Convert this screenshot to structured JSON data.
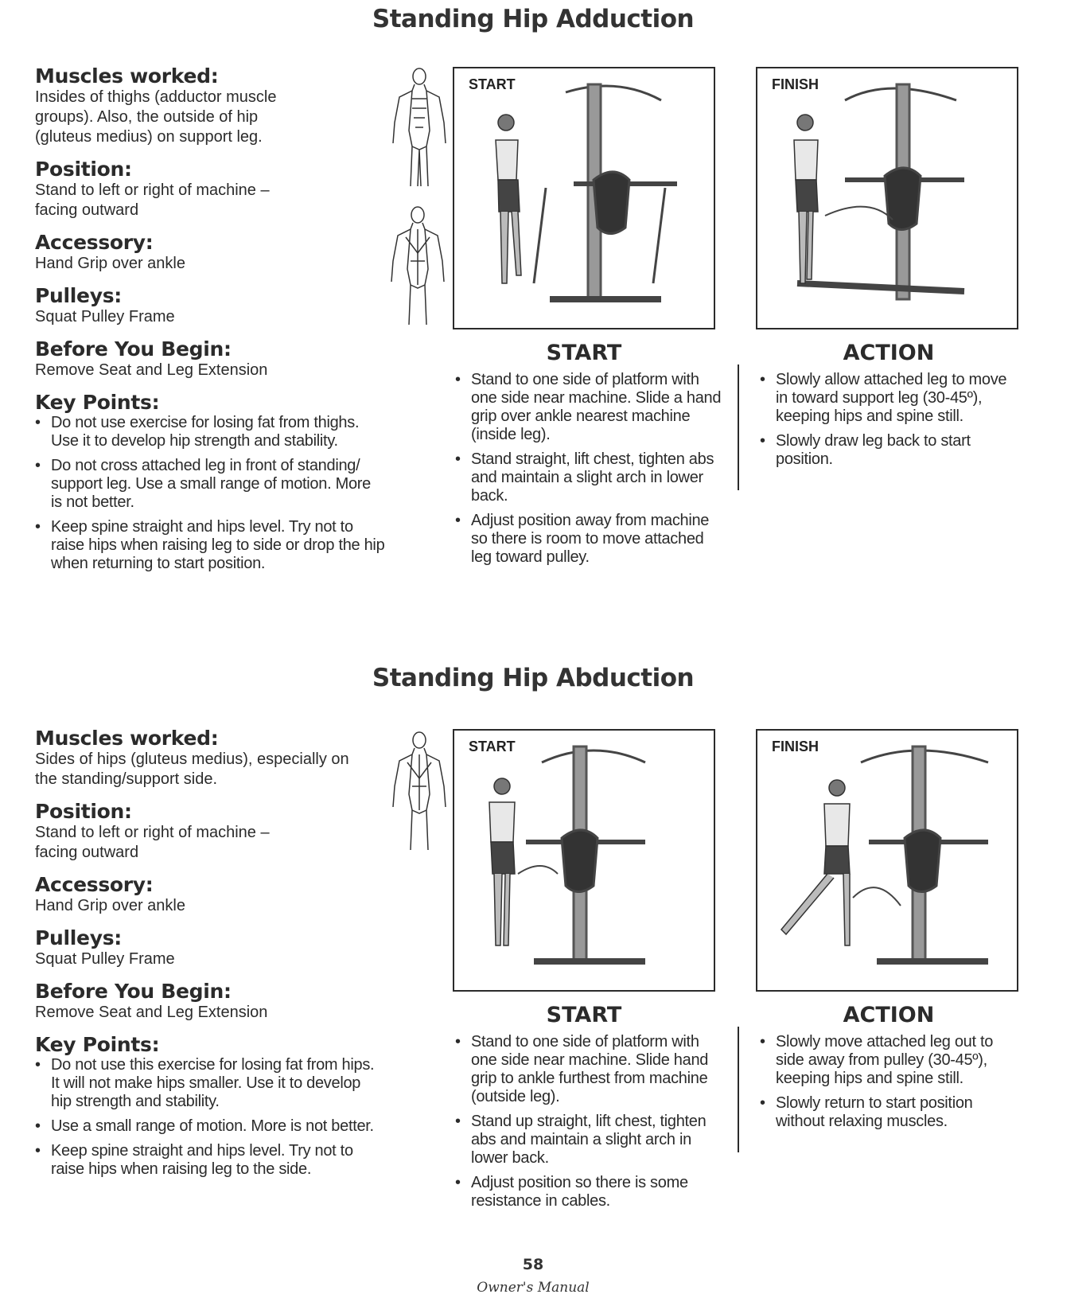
{
  "sections": [
    {
      "title": "Standing Hip Adduction",
      "muscles_label": "Muscles worked:",
      "muscles_text": "Insides of thighs (adductor muscle\ngroups). Also, the outside of hip\n(gluteus medius) on support leg.",
      "position_label": "Position:",
      "position_text": "Stand to left or right of machine –\nfacing outward",
      "accessory_label": "Accessory:",
      "accessory_text": "Hand Grip over ankle",
      "pulleys_label": "Pulleys:",
      "pulleys_text": "Squat Pulley Frame",
      "before_label": "Before You Begin:",
      "before_text": "Remove Seat and Leg Extension",
      "key_label": "Key Points:",
      "key_points": [
        "Do not use exercise for losing fat from thighs. Use it to develop hip strength and stability.",
        "Do not cross attached leg in front of standing/ support leg. Use a small range of motion. More is not better.",
        "Keep spine straight and hips level. Try not to raise hips when raising leg to side or drop the hip when returning to start position."
      ],
      "photo_start_tag": "START",
      "photo_finish_tag": "FINISH",
      "start_heading": "START",
      "start_steps": [
        "Stand to one side of platform with one side near machine. Slide a hand grip over ankle nearest machine (inside leg).",
        "Stand straight, lift chest, tighten abs and maintain a slight arch in lower back.",
        "Adjust position away from machine so there is room to move attached leg toward pulley."
      ],
      "action_heading": "ACTION",
      "action_steps": [
        "Slowly allow attached leg to move in toward support leg (30-45º), keeping hips and spine still.",
        "Slowly draw leg back to start position."
      ]
    },
    {
      "title": "Standing Hip Abduction",
      "muscles_label": "Muscles worked:",
      "muscles_text": "Sides of hips (gluteus medius), especially on\nthe standing/support side.",
      "position_label": "Position:",
      "position_text": "Stand to left or right of machine –\nfacing outward",
      "accessory_label": "Accessory:",
      "accessory_text": "Hand Grip over ankle",
      "pulleys_label": "Pulleys:",
      "pulleys_text": "Squat Pulley Frame",
      "before_label": "Before You Begin:",
      "before_text": "Remove Seat and Leg Extension",
      "key_label": "Key Points:",
      "key_points": [
        "Do not use this exercise for losing fat from hips. It will not make hips smaller. Use it to develop hip strength and stability.",
        "Use a small range of motion. More is not better.",
        "Keep spine straight and hips level. Try not to raise hips when raising leg to the side."
      ],
      "photo_start_tag": "START",
      "photo_finish_tag": "FINISH",
      "start_heading": "START",
      "start_steps": [
        "Stand to one side of platform with one side near machine. Slide hand grip to ankle furthest from machine (outside leg).",
        "Stand up straight, lift chest, tighten abs and maintain a slight arch in lower back.",
        "Adjust position so there is some resistance in cables."
      ],
      "action_heading": "ACTION",
      "action_steps": [
        "Slowly move attached leg out to side away from pulley (30-45º), keeping hips and spine still.",
        "Slowly return to start position without relaxing muscles."
      ]
    }
  ],
  "page_number": "58",
  "footer": "Owner's Manual"
}
